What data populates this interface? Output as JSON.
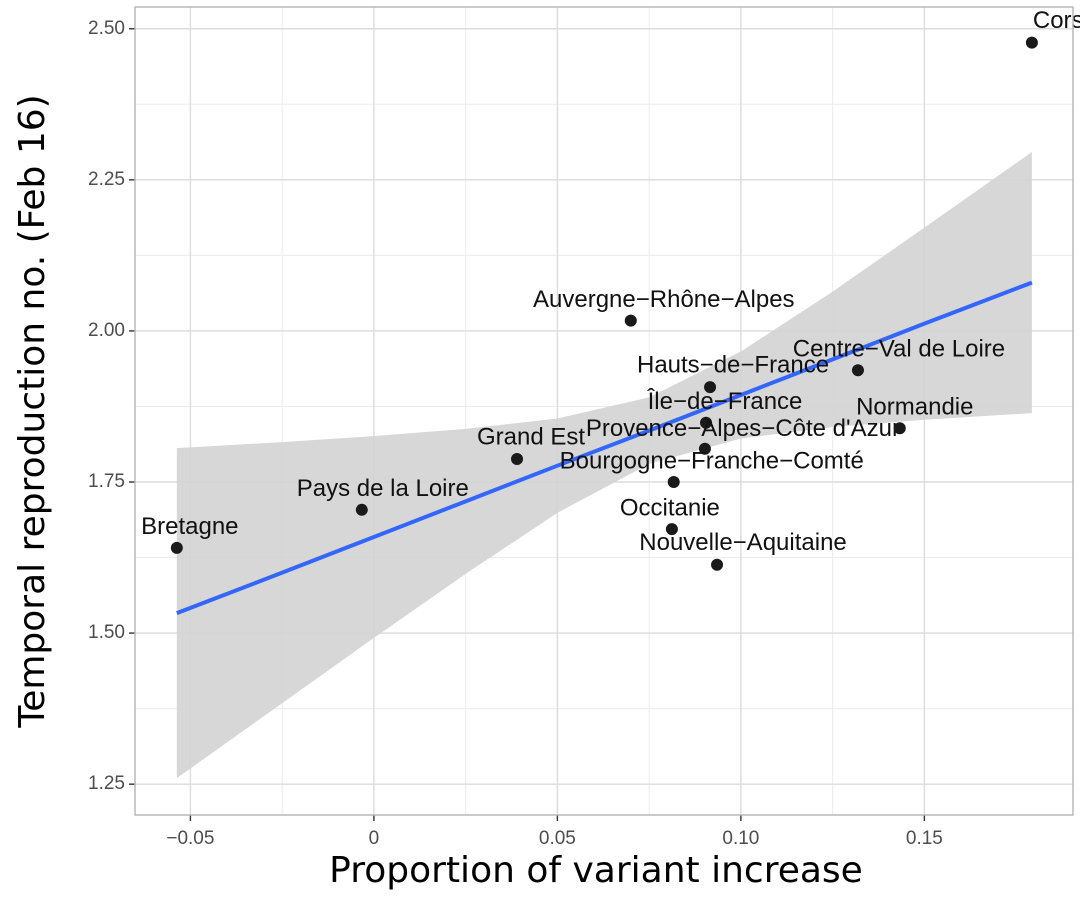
{
  "chart_data": {
    "type": "scatter",
    "x_label": "Proportion of variant increase",
    "y_label": "Temporal reproduction no. (Feb 16)",
    "labels": [
      "Corse",
      "Bretagne",
      "Pays de la Loire",
      "Grand Est",
      "Auvergne−Rhône−Alpes",
      "Hauts−de−France",
      "Centre−Val de Loire",
      "Île−de−France",
      "Provence−Alpes−Côte d'Azur",
      "Normandie",
      "Bourgogne−Franche−Comté",
      "Occitanie",
      "Nouvelle−Aquitaine"
    ],
    "x": [
      0.1793,
      -0.0537,
      -0.0033,
      0.039,
      0.07,
      0.0916,
      0.1319,
      0.0905,
      0.0902,
      0.1433,
      0.0817,
      0.0812,
      0.0935
    ],
    "values": [
      2.477,
      1.641,
      1.704,
      1.788,
      2.017,
      1.907,
      1.935,
      1.848,
      1.805,
      1.839,
      1.75,
      1.672,
      1.613
    ],
    "color": "#1a1a1a",
    "fit": {
      "color": "#3366ff",
      "band_color": "#d3d3d3",
      "x": [
        -0.0537,
        -0.025,
        0,
        0.025,
        0.05,
        0.075,
        0.1,
        0.125,
        0.15,
        0.1793
      ],
      "y": [
        1.533,
        1.6,
        1.659,
        1.718,
        1.777,
        1.835,
        1.894,
        1.953,
        2.012,
        2.08
      ],
      "lower": [
        1.26,
        1.384,
        1.492,
        1.598,
        1.699,
        1.78,
        1.822,
        1.841,
        1.853,
        1.864
      ],
      "upper": [
        1.806,
        1.816,
        1.826,
        1.838,
        1.855,
        1.89,
        1.966,
        2.065,
        2.171,
        2.296
      ]
    },
    "xlim": [
      -0.0651,
      0.1905
    ],
    "ylim": [
      1.199,
      2.536
    ],
    "xticks": [
      {
        "value": -0.05,
        "label": "−0.05"
      },
      0,
      0.05,
      {
        "value": 0.1,
        "label": "0.10"
      },
      0.15
    ],
    "yticks": [
      {
        "value": 1.25,
        "label": "1.25"
      },
      {
        "value": 1.5,
        "label": "1.50"
      },
      {
        "value": 1.75,
        "label": "1.75"
      },
      {
        "value": 2.0,
        "label": "2.00"
      },
      {
        "value": 2.25,
        "label": "2.25"
      },
      {
        "value": 2.5,
        "label": "2.50"
      }
    ],
    "grid": true
  }
}
